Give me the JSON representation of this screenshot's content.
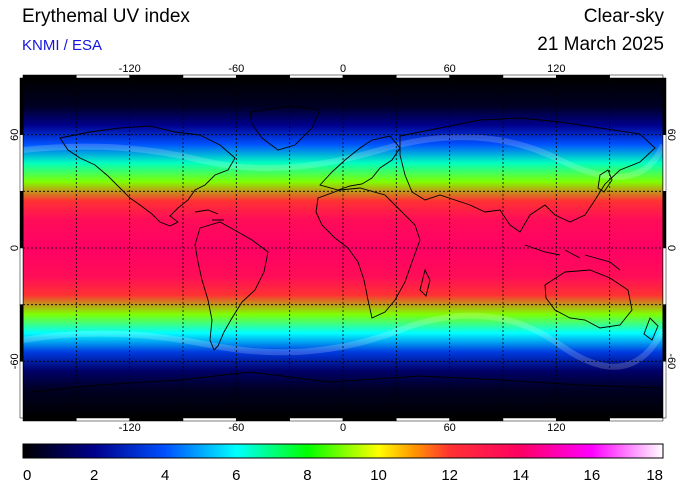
{
  "header": {
    "title": "Erythemal UV index",
    "source": "KNMI / ESA",
    "mode": "Clear-sky",
    "date": "21 March 2025"
  },
  "map": {
    "lon_range": [
      -180,
      180
    ],
    "lat_range": [
      -90,
      90
    ],
    "lon_ticks": [
      -120,
      -60,
      0,
      60,
      120
    ],
    "lat_ticks": [
      60,
      0,
      -60
    ],
    "gridlines": "dashed every 30 degrees",
    "uv_by_latitude": [
      {
        "lat": 90,
        "uv": 0
      },
      {
        "lat": 75,
        "uv": 0.5
      },
      {
        "lat": 65,
        "uv": 2
      },
      {
        "lat": 55,
        "uv": 4
      },
      {
        "lat": 45,
        "uv": 6.5
      },
      {
        "lat": 35,
        "uv": 9
      },
      {
        "lat": 25,
        "uv": 12
      },
      {
        "lat": 15,
        "uv": 13.5
      },
      {
        "lat": 0,
        "uv": 14
      },
      {
        "lat": -15,
        "uv": 13.5
      },
      {
        "lat": -25,
        "uv": 12
      },
      {
        "lat": -35,
        "uv": 9
      },
      {
        "lat": -45,
        "uv": 6
      },
      {
        "lat": -55,
        "uv": 3.5
      },
      {
        "lat": -65,
        "uv": 1.5
      },
      {
        "lat": -75,
        "uv": 0.5
      },
      {
        "lat": -90,
        "uv": 0
      }
    ]
  },
  "colorbar": {
    "min": 0,
    "max": 18,
    "ticks": [
      "0",
      "2",
      "4",
      "6",
      "8",
      "10",
      "12",
      "14",
      "16",
      "18"
    ],
    "stops": [
      {
        "value": 0,
        "color": "#000000"
      },
      {
        "value": 2,
        "color": "#00008b"
      },
      {
        "value": 4,
        "color": "#0050ff"
      },
      {
        "value": 6,
        "color": "#00ffff"
      },
      {
        "value": 8,
        "color": "#00ff00"
      },
      {
        "value": 10,
        "color": "#ffff00"
      },
      {
        "value": 11,
        "color": "#ff9600"
      },
      {
        "value": 12,
        "color": "#ff3232"
      },
      {
        "value": 14,
        "color": "#ff0064"
      },
      {
        "value": 16,
        "color": "#ff00ff"
      },
      {
        "value": 18,
        "color": "#ffffff"
      }
    ]
  }
}
